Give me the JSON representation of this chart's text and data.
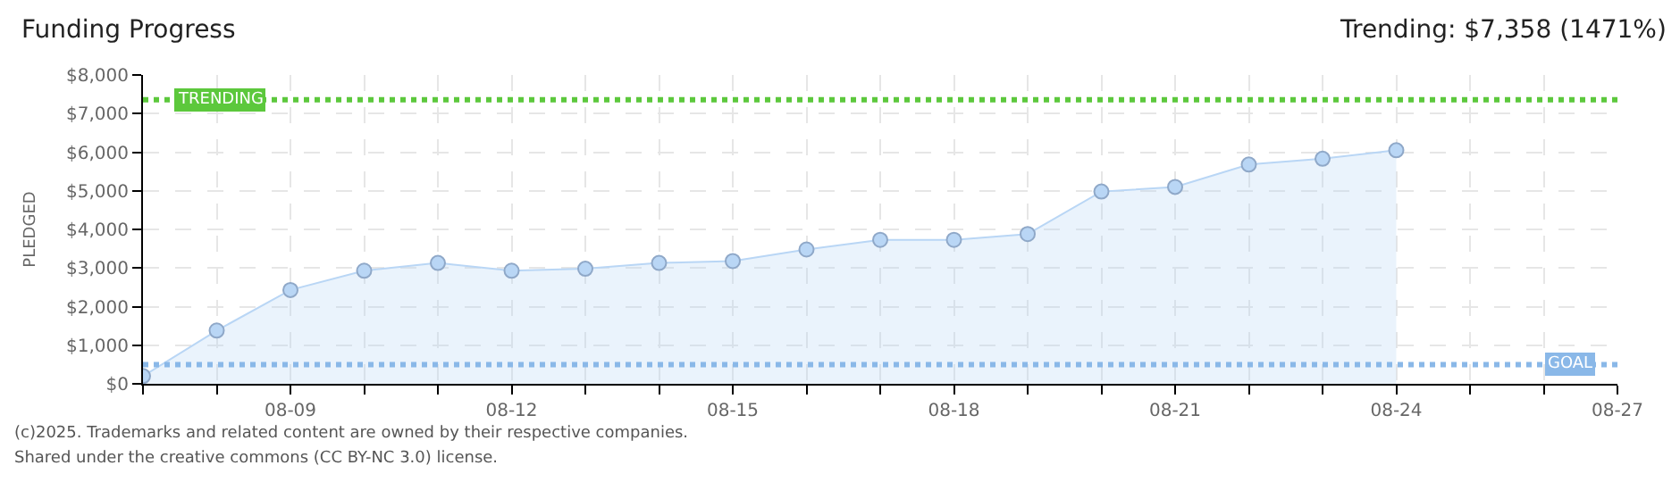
{
  "chart_data": {
    "type": "area",
    "title": "Funding Progress",
    "subtitle": "Trending: $7,358 (1471%)",
    "ylabel": "PLEDGED",
    "x": [
      "2025-08-07",
      "2025-08-08",
      "2025-08-09",
      "2025-08-10",
      "2025-08-11",
      "2025-08-12",
      "2025-08-13",
      "2025-08-14",
      "2025-08-15",
      "2025-08-16",
      "2025-08-17",
      "2025-08-18",
      "2025-08-19",
      "2025-08-20",
      "2025-08-21",
      "2025-08-22",
      "2025-08-23",
      "2025-08-24"
    ],
    "series": [
      {
        "color": "#b9d6f5",
        "values": [
          200,
          1380,
          2430,
          2930,
          3130,
          2930,
          2980,
          3130,
          3180,
          3480,
          3730,
          3730,
          3880,
          4980,
          5100,
          5680,
          5830,
          6050
        ]
      }
    ],
    "xlim": [
      "2025-08-07",
      "2025-08-27"
    ],
    "xticks": [
      {
        "value": "2025-08-07",
        "label": null
      },
      {
        "value": "2025-08-08",
        "label": null
      },
      {
        "value": "2025-08-09",
        "label": "08-09"
      },
      {
        "value": "2025-08-10",
        "label": null
      },
      {
        "value": "2025-08-11",
        "label": null
      },
      {
        "value": "2025-08-12",
        "label": "08-12"
      },
      {
        "value": "2025-08-13",
        "label": null
      },
      {
        "value": "2025-08-14",
        "label": null
      },
      {
        "value": "2025-08-15",
        "label": "08-15"
      },
      {
        "value": "2025-08-16",
        "label": null
      },
      {
        "value": "2025-08-17",
        "label": null
      },
      {
        "value": "2025-08-18",
        "label": "08-18"
      },
      {
        "value": "2025-08-19",
        "label": null
      },
      {
        "value": "2025-08-20",
        "label": null
      },
      {
        "value": "2025-08-21",
        "label": "08-21"
      },
      {
        "value": "2025-08-22",
        "label": null
      },
      {
        "value": "2025-08-23",
        "label": null
      },
      {
        "value": "2025-08-24",
        "label": "08-24"
      },
      {
        "value": "2025-08-25",
        "label": null
      },
      {
        "value": "2025-08-26",
        "label": null
      },
      {
        "value": "2025-08-27",
        "label": "08-27"
      }
    ],
    "ylim": [
      0,
      8000
    ],
    "yticks": [
      {
        "value": 0,
        "label": "$0"
      },
      {
        "value": 1000,
        "label": "$1,000"
      },
      {
        "value": 2000,
        "label": "$2,000"
      },
      {
        "value": 3000,
        "label": "$3,000"
      },
      {
        "value": 4000,
        "label": "$4,000"
      },
      {
        "value": 5000,
        "label": "$5,000"
      },
      {
        "value": 6000,
        "label": "$6,000"
      },
      {
        "value": 7000,
        "label": "$7,000"
      },
      {
        "value": 8000,
        "label": "$8,000"
      }
    ],
    "ref_lines": [
      {
        "axis": "y",
        "value": 7358,
        "label": "TRENDING",
        "color": "#5cc83c",
        "line_style": "dotted"
      },
      {
        "axis": "y",
        "value": 500,
        "label": "GOAL",
        "color": "#8ab8e8",
        "line_style": "dotted"
      }
    ],
    "annotations": [
      "(c)2025. Trademarks and related content are owned by their respective companies.",
      "Shared under the creative commons (CC BY-NC 3.0) license."
    ],
    "grid": true,
    "marker": "circle",
    "line_style": "solid",
    "legend": false
  }
}
